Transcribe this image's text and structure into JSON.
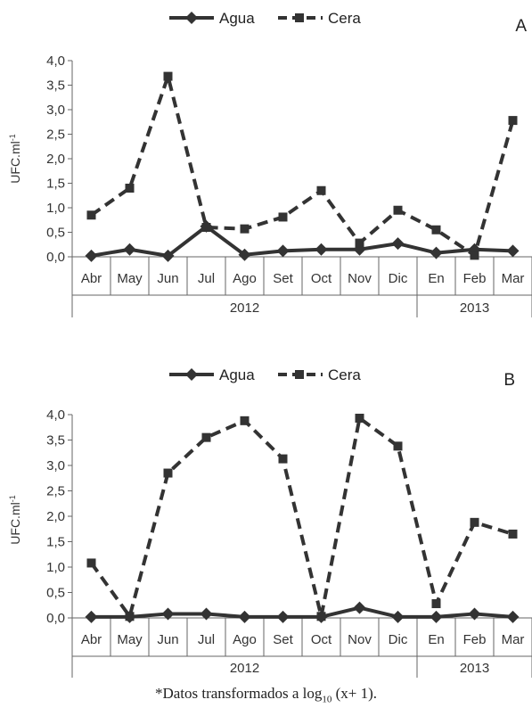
{
  "chart_data": [
    {
      "type": "line",
      "panel_label": "A",
      "ylabel": "UFC.ml",
      "ylabel_sup": "-1",
      "ylim": [
        0,
        4.0
      ],
      "yticks": [
        "0,0",
        "0,5",
        "1,0",
        "1,5",
        "2,0",
        "2,5",
        "3,0",
        "3,5",
        "4,0"
      ],
      "categories": [
        "Abr",
        "May",
        "Jun",
        "Jul",
        "Ago",
        "Set",
        "Oct",
        "Nov",
        "Dic",
        "En",
        "Feb",
        "Mar"
      ],
      "groups": [
        {
          "label": "2012",
          "span": [
            0,
            8
          ]
        },
        {
          "label": "2013",
          "span": [
            9,
            11
          ]
        }
      ],
      "legend": "top",
      "series": [
        {
          "name": "Agua",
          "style": "solid",
          "marker": "diamond",
          "values": [
            0.02,
            0.15,
            0.02,
            0.62,
            0.04,
            0.12,
            0.15,
            0.15,
            0.27,
            0.08,
            0.15,
            0.12
          ]
        },
        {
          "name": "Cera",
          "style": "dashed",
          "marker": "square",
          "values": [
            0.85,
            1.4,
            3.68,
            0.6,
            0.57,
            0.81,
            1.35,
            0.28,
            0.95,
            0.55,
            0.03,
            2.78
          ]
        }
      ]
    },
    {
      "type": "line",
      "panel_label": "B",
      "ylabel": "UFC.ml",
      "ylabel_sup": "-1",
      "ylim": [
        0,
        4.0
      ],
      "yticks": [
        "0,0",
        "0,5",
        "1,0",
        "1,5",
        "2,0",
        "2,5",
        "3,0",
        "3,5",
        "4,0"
      ],
      "categories": [
        "Abr",
        "May",
        "Jun",
        "Jul",
        "Ago",
        "Set",
        "Oct",
        "Nov",
        "Dic",
        "En",
        "Feb",
        "Mar"
      ],
      "groups": [
        {
          "label": "2012",
          "span": [
            0,
            8
          ]
        },
        {
          "label": "2013",
          "span": [
            9,
            11
          ]
        }
      ],
      "legend": "top",
      "series": [
        {
          "name": "Agua",
          "style": "solid",
          "marker": "diamond",
          "values": [
            0.02,
            0.02,
            0.08,
            0.08,
            0.02,
            0.02,
            0.02,
            0.2,
            0.02,
            0.02,
            0.08,
            0.02
          ]
        },
        {
          "name": "Cera",
          "style": "dashed",
          "marker": "square",
          "values": [
            1.08,
            0.03,
            2.85,
            3.55,
            3.88,
            3.13,
            0.03,
            3.93,
            3.38,
            0.28,
            1.88,
            1.65
          ]
        }
      ]
    }
  ],
  "footnote": {
    "prefix": "*Datos transformados a log",
    "sub": "10",
    "suffix": " (x+ 1)."
  }
}
